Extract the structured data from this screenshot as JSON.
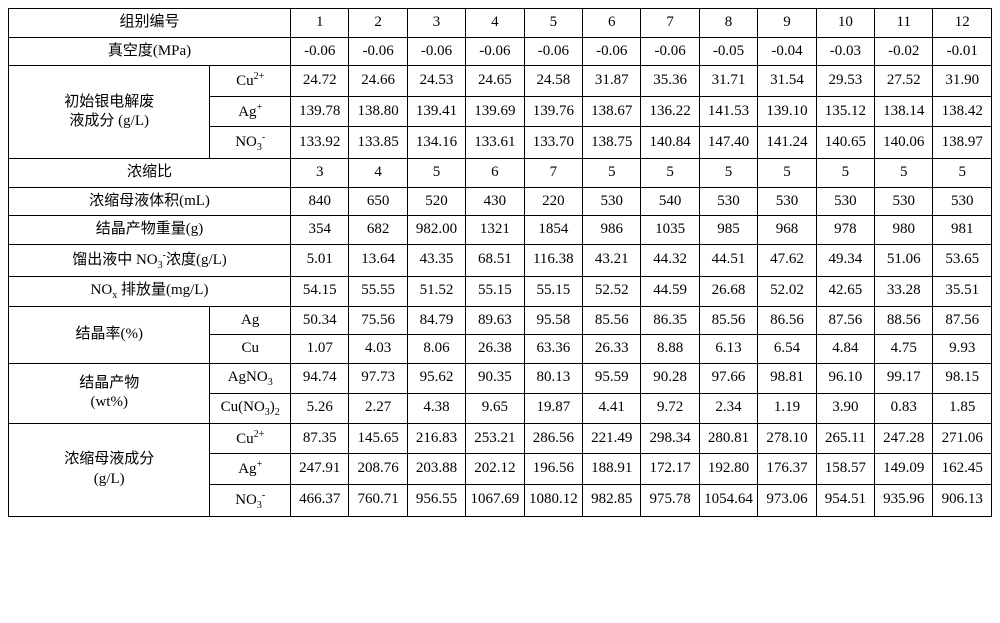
{
  "header": {
    "group_no": "组别编号",
    "cols": [
      "1",
      "2",
      "3",
      "4",
      "5",
      "6",
      "7",
      "8",
      "9",
      "10",
      "11",
      "12"
    ]
  },
  "rows": [
    {
      "label": "真空度(MPa)",
      "type": "single",
      "values": [
        "-0.06",
        "-0.06",
        "-0.06",
        "-0.06",
        "-0.06",
        "-0.06",
        "-0.06",
        "-0.05",
        "-0.04",
        "-0.03",
        "-0.02",
        "-0.01"
      ]
    },
    {
      "label": "初始银电解废\n液成分 (g/L)",
      "type": "group",
      "subrows": [
        {
          "key": "Cu2+",
          "values": [
            "24.72",
            "24.66",
            "24.53",
            "24.65",
            "24.58",
            "31.87",
            "35.36",
            "31.71",
            "31.54",
            "29.53",
            "27.52",
            "31.90"
          ]
        },
        {
          "key": "Ag+",
          "values": [
            "139.78",
            "138.80",
            "139.41",
            "139.69",
            "139.76",
            "138.67",
            "136.22",
            "141.53",
            "139.10",
            "135.12",
            "138.14",
            "138.42"
          ]
        },
        {
          "key": "NO3-",
          "values": [
            "133.92",
            "133.85",
            "134.16",
            "133.61",
            "133.70",
            "138.75",
            "140.84",
            "147.40",
            "141.24",
            "140.65",
            "140.06",
            "138.97"
          ]
        }
      ]
    },
    {
      "label": "浓缩比",
      "type": "single",
      "values": [
        "3",
        "4",
        "5",
        "6",
        "7",
        "5",
        "5",
        "5",
        "5",
        "5",
        "5",
        "5"
      ]
    },
    {
      "label": "浓缩母液体积(mL)",
      "type": "single",
      "values": [
        "840",
        "650",
        "520",
        "430",
        "220",
        "530",
        "540",
        "530",
        "530",
        "530",
        "530",
        "530"
      ]
    },
    {
      "label": "结晶产物重量(g)",
      "type": "single",
      "values": [
        "354",
        "682",
        "982.00",
        "1321",
        "1854",
        "986",
        "1035",
        "985",
        "968",
        "978",
        "980",
        "981"
      ]
    },
    {
      "label": "馏出液中 NO3-浓度(g/L)",
      "type": "single",
      "labelKey": "NO3conc",
      "values": [
        "5.01",
        "13.64",
        "43.35",
        "68.51",
        "116.38",
        "43.21",
        "44.32",
        "44.51",
        "47.62",
        "49.34",
        "51.06",
        "53.65"
      ]
    },
    {
      "label": "NOx 排放量(mg/L)",
      "type": "single",
      "labelKey": "NOxemit",
      "values": [
        "54.15",
        "55.55",
        "51.52",
        "55.15",
        "55.15",
        "52.52",
        "44.59",
        "26.68",
        "52.02",
        "42.65",
        "33.28",
        "35.51"
      ]
    },
    {
      "label": "结晶率(%)",
      "type": "group",
      "subrows": [
        {
          "key": "Ag",
          "values": [
            "50.34",
            "75.56",
            "84.79",
            "89.63",
            "95.58",
            "85.56",
            "86.35",
            "85.56",
            "86.56",
            "87.56",
            "88.56",
            "87.56"
          ]
        },
        {
          "key": "Cu",
          "values": [
            "1.07",
            "4.03",
            "8.06",
            "26.38",
            "63.36",
            "26.33",
            "8.88",
            "6.13",
            "6.54",
            "4.84",
            "4.75",
            "9.93"
          ]
        }
      ]
    },
    {
      "label": "结晶产物\n(wt%)",
      "type": "group",
      "subrows": [
        {
          "key": "AgNO3",
          "values": [
            "94.74",
            "97.73",
            "95.62",
            "90.35",
            "80.13",
            "95.59",
            "90.28",
            "97.66",
            "98.81",
            "96.10",
            "99.17",
            "98.15"
          ]
        },
        {
          "key": "Cu(NO3)2",
          "values": [
            "5.26",
            "2.27",
            "4.38",
            "9.65",
            "19.87",
            "4.41",
            "9.72",
            "2.34",
            "1.19",
            "3.90",
            "0.83",
            "1.85"
          ]
        }
      ]
    },
    {
      "label": "浓缩母液成分\n(g/L)",
      "type": "group",
      "subrows": [
        {
          "key": "Cu2+",
          "values": [
            "87.35",
            "145.65",
            "216.83",
            "253.21",
            "286.56",
            "221.49",
            "298.34",
            "280.81",
            "278.10",
            "265.11",
            "247.28",
            "271.06"
          ]
        },
        {
          "key": "Ag+",
          "values": [
            "247.91",
            "208.76",
            "203.88",
            "202.12",
            "196.56",
            "188.91",
            "172.17",
            "192.80",
            "176.37",
            "158.57",
            "149.09",
            "162.45"
          ]
        },
        {
          "key": "NO3-",
          "values": [
            "466.37",
            "760.71",
            "956.55",
            "1067.69",
            "1080.12",
            "982.85",
            "975.78",
            "1054.64",
            "973.06",
            "954.51",
            "935.96",
            "906.13"
          ]
        }
      ]
    }
  ],
  "style": {
    "font_family": "SimSun, Times New Roman, serif",
    "border_color": "#000000",
    "background_color": "#ffffff",
    "text_color": "#000000",
    "header_fontsize": 15,
    "data_fontsize": 14
  }
}
